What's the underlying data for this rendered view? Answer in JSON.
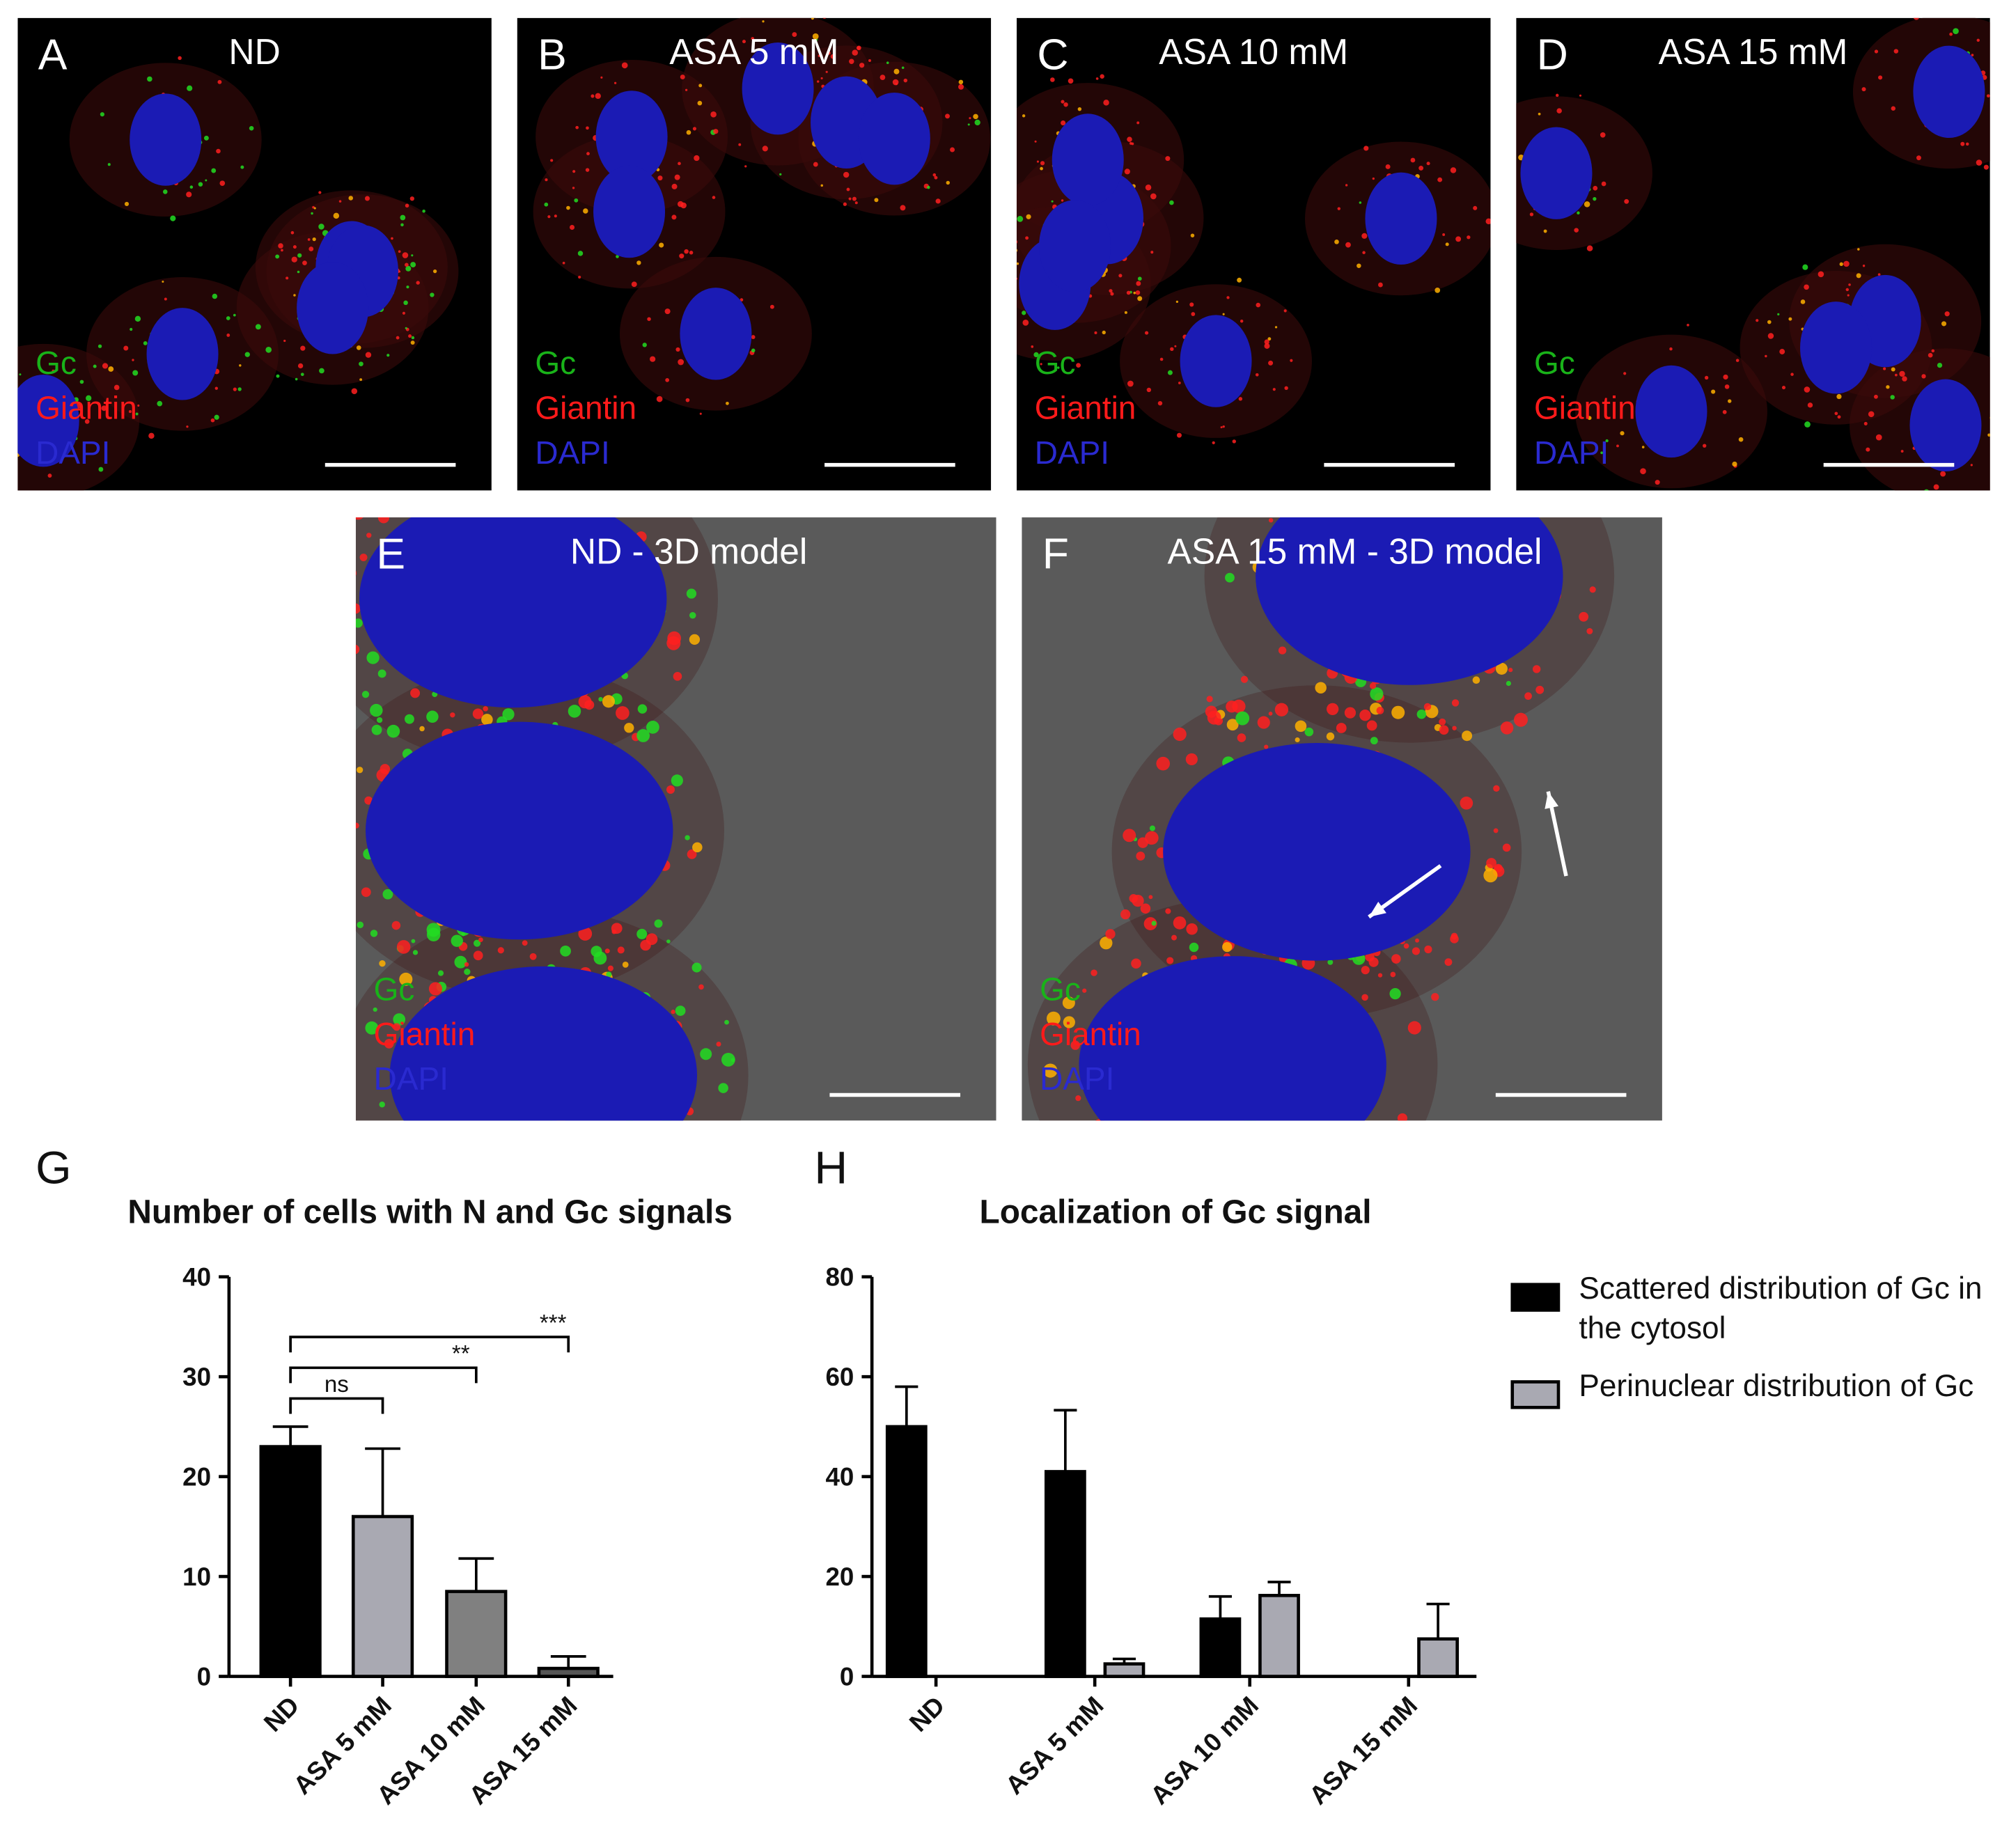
{
  "panels": [
    {
      "letter": "A",
      "title": "ND",
      "channels": [
        "Gc",
        "Giantin",
        "DAPI"
      ]
    },
    {
      "letter": "B",
      "title": "ASA 5 mM",
      "channels": [
        "Gc",
        "Giantin",
        "DAPI"
      ]
    },
    {
      "letter": "C",
      "title": "ASA 10 mM",
      "channels": [
        "Gc",
        "Giantin",
        "DAPI"
      ]
    },
    {
      "letter": "D",
      "title": "ASA 15 mM",
      "channels": [
        "Gc",
        "Giantin",
        "DAPI"
      ]
    },
    {
      "letter": "E",
      "title": "ND - 3D model",
      "channels": [
        "Gc",
        "Giantin",
        "DAPI"
      ]
    },
    {
      "letter": "F",
      "title": "ASA 15 mM - 3D model",
      "channels": [
        "Gc",
        "Giantin",
        "DAPI"
      ]
    }
  ],
  "chart_data": [
    {
      "type": "bar",
      "panel": "G",
      "title": "Number of cells with N and Gc signals",
      "categories": [
        "ND",
        "ASA 5 mM",
        "ASA 10 mM",
        "ASA 15 mM"
      ],
      "values": [
        23,
        16,
        8.5,
        0.8
      ],
      "errors": [
        2,
        6.8,
        3.3,
        1.2
      ],
      "colors": [
        "#000000",
        "#a9a9b2",
        "#808080",
        "#555555"
      ],
      "ylim": [
        0,
        40
      ],
      "yticks": [
        0,
        10,
        20,
        30,
        40
      ],
      "annotations": [
        {
          "text": "ns",
          "from": 0,
          "to": 1
        },
        {
          "text": "**",
          "from": 0,
          "to": 2
        },
        {
          "text": "***",
          "from": 0,
          "to": 3
        }
      ]
    },
    {
      "type": "grouped-bar",
      "panel": "H",
      "title": "Localization of Gc signal",
      "categories": [
        "ND",
        "ASA 5 mM",
        "ASA 10 mM",
        "ASA 15 mM"
      ],
      "series": [
        {
          "name": "Scattered distribution of Gc in the cytosol",
          "color": "#000000",
          "values": [
            50,
            41,
            11.5,
            0
          ],
          "errors": [
            8,
            12.3,
            4.5,
            0
          ]
        },
        {
          "name": "Perinuclear distribution of Gc",
          "color": "#a9a9b2",
          "values": [
            0,
            2.5,
            16.2,
            7.5
          ],
          "errors": [
            0,
            1,
            2.7,
            7
          ]
        }
      ],
      "ylim": [
        0,
        80
      ],
      "yticks": [
        0,
        20,
        40,
        60,
        80
      ],
      "legend": "right"
    }
  ]
}
